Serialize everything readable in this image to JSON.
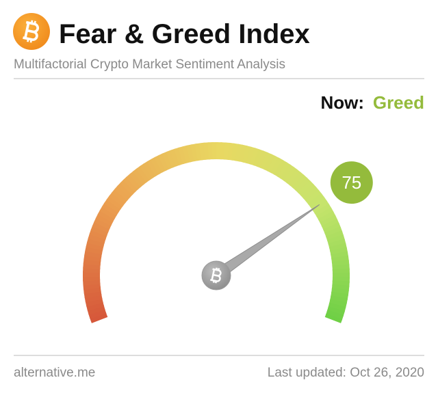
{
  "chart_data": {
    "type": "gauge",
    "title": "Fear & Greed Index",
    "subtitle": "Multifactorial Crypto Market Sentiment Analysis",
    "status_label": "Now:",
    "status": "Greed",
    "status_color": "#94bb3c",
    "value": 75,
    "ylim": [
      0,
      100
    ],
    "colors": [
      "#d6583a",
      "#eba050",
      "#e9d862",
      "#c6e46c",
      "#6ccf44"
    ],
    "source": "alternative.me",
    "updated": "Last updated: Oct 26, 2020"
  }
}
